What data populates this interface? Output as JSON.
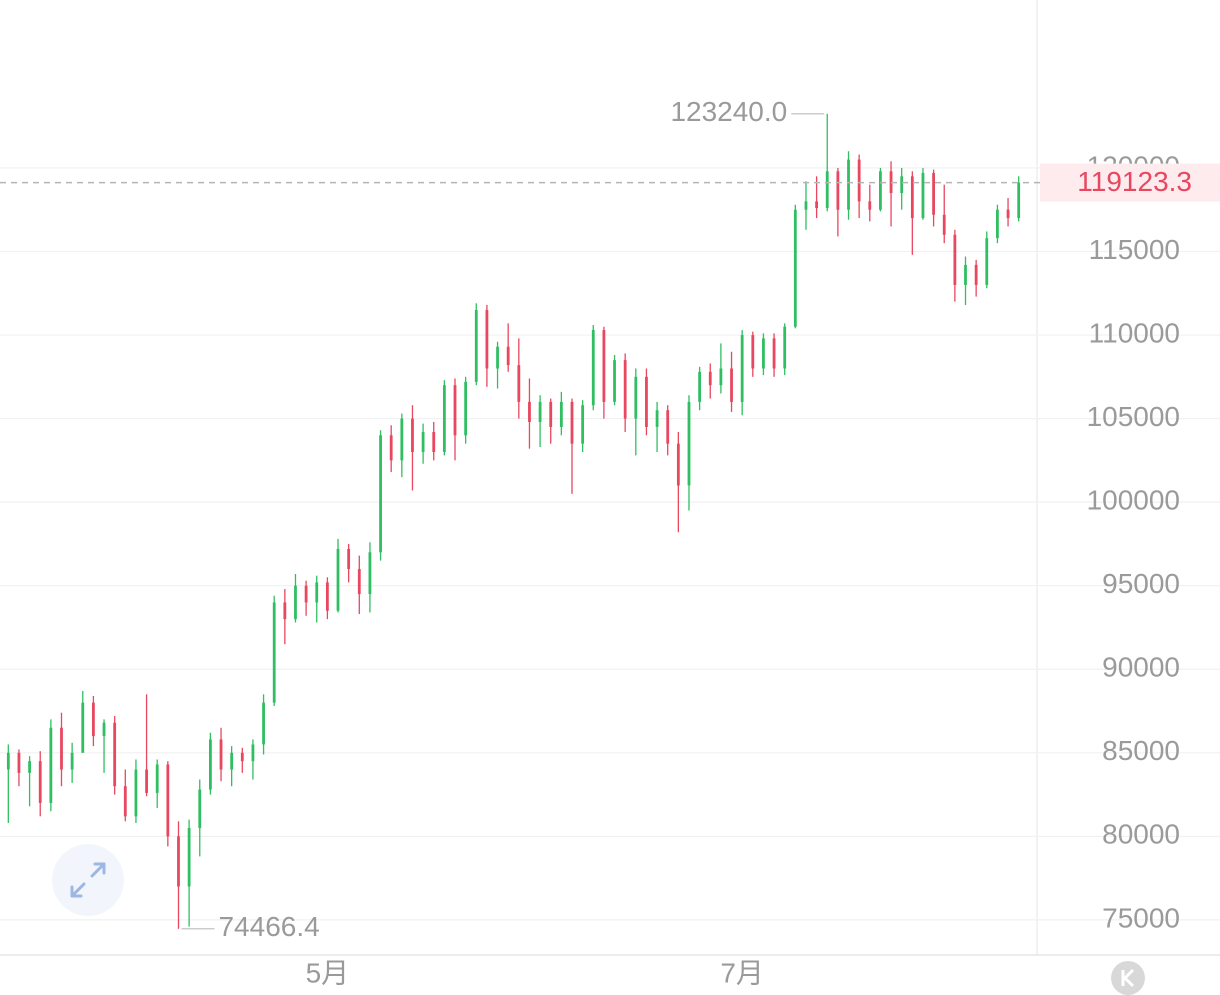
{
  "chart_data": {
    "type": "candlestick",
    "up_color": "#2fbf62",
    "down_color": "#e8475f",
    "ylim": [
      72900,
      130050
    ],
    "yticks": [
      75000,
      80000,
      85000,
      90000,
      95000,
      100000,
      105000,
      110000,
      115000,
      120000
    ],
    "grid": true,
    "last_price": 119123.3,
    "max_annotation": {
      "value": 123240,
      "label": "123240.0"
    },
    "min_annotation": 74466.4,
    "categories": [
      null,
      null,
      null,
      null,
      null,
      null,
      null,
      null,
      null,
      null,
      null,
      null,
      null,
      null,
      null,
      null,
      null,
      null,
      null,
      null,
      null,
      null,
      null,
      null,
      null,
      null,
      null,
      null,
      null,
      null,
      "5月",
      null,
      null,
      null,
      null,
      null,
      null,
      null,
      null,
      null,
      null,
      null,
      null,
      null,
      null,
      null,
      null,
      null,
      null,
      null,
      null,
      null,
      null,
      null,
      null,
      null,
      null,
      null,
      null,
      null,
      null,
      null,
      null,
      null,
      null,
      null,
      null,
      null,
      null,
      "7月",
      null,
      null,
      null,
      null,
      null,
      null,
      null,
      null,
      null,
      null,
      null,
      null,
      null,
      null,
      null,
      null,
      null,
      null,
      null,
      null,
      null,
      null,
      null,
      null,
      null,
      null
    ],
    "candles": [
      [
        84000,
        85500,
        80800,
        85000
      ],
      [
        85000,
        85200,
        83000,
        83800
      ],
      [
        83800,
        84800,
        81800,
        84500
      ],
      [
        84500,
        85100,
        81200,
        82000
      ],
      [
        82000,
        87000,
        81500,
        86500
      ],
      [
        86500,
        87400,
        83000,
        84000
      ],
      [
        84000,
        85600,
        83200,
        85000
      ],
      [
        85000,
        88700,
        85000,
        88000
      ],
      [
        88000,
        88400,
        85400,
        86000
      ],
      [
        86000,
        87000,
        83800,
        86800
      ],
      [
        86800,
        87200,
        82500,
        83000
      ],
      [
        83000,
        84000,
        80900,
        81200
      ],
      [
        81200,
        84600,
        80800,
        84000
      ],
      [
        84000,
        88500,
        82400,
        82600
      ],
      [
        82600,
        84600,
        81700,
        84300
      ],
      [
        84300,
        84500,
        79400,
        80000
      ],
      [
        80000,
        80900,
        74466.4,
        77000
      ],
      [
        77000,
        81000,
        74600,
        80500
      ],
      [
        80500,
        83400,
        78800,
        82800
      ],
      [
        82800,
        86200,
        82500,
        85800
      ],
      [
        85800,
        86500,
        83300,
        84000
      ],
      [
        84000,
        85400,
        83000,
        85000
      ],
      [
        85000,
        85300,
        83800,
        84500
      ],
      [
        84500,
        85800,
        83400,
        85500
      ],
      [
        85500,
        88500,
        84900,
        88000
      ],
      [
        88000,
        94400,
        87800,
        94000
      ],
      [
        94000,
        94800,
        91500,
        93000
      ],
      [
        93000,
        95700,
        92800,
        95000
      ],
      [
        95000,
        95300,
        93200,
        94000
      ],
      [
        94000,
        95600,
        92800,
        95200
      ],
      [
        95200,
        95500,
        93000,
        93500
      ],
      [
        93500,
        97800,
        93400,
        97200
      ],
      [
        97200,
        97500,
        95200,
        96000
      ],
      [
        96000,
        96800,
        93300,
        94500
      ],
      [
        94500,
        97600,
        93400,
        97000
      ],
      [
        97000,
        104300,
        96500,
        104000
      ],
      [
        104000,
        104600,
        101800,
        102500
      ],
      [
        102500,
        105300,
        101500,
        105000
      ],
      [
        105000,
        105800,
        100700,
        103000
      ],
      [
        103000,
        104700,
        102300,
        104200
      ],
      [
        104200,
        104800,
        102500,
        103000
      ],
      [
        103000,
        107300,
        102800,
        107000
      ],
      [
        107000,
        107400,
        102500,
        104000
      ],
      [
        104000,
        107500,
        103500,
        107200
      ],
      [
        107200,
        111900,
        107000,
        111500
      ],
      [
        111500,
        111800,
        106900,
        108000
      ],
      [
        108000,
        109600,
        106800,
        109300
      ],
      [
        109300,
        110700,
        107800,
        108200
      ],
      [
        108200,
        109800,
        105000,
        106000
      ],
      [
        106000,
        107400,
        103200,
        104800
      ],
      [
        104800,
        106400,
        103300,
        106000
      ],
      [
        106000,
        106200,
        103500,
        104500
      ],
      [
        104500,
        106600,
        104000,
        106000
      ],
      [
        106000,
        106200,
        100500,
        103500
      ],
      [
        103500,
        106100,
        103000,
        105800
      ],
      [
        105800,
        110600,
        105500,
        110300
      ],
      [
        110300,
        110500,
        105000,
        106000
      ],
      [
        106000,
        108800,
        105800,
        108500
      ],
      [
        108500,
        108900,
        104200,
        105000
      ],
      [
        105000,
        108000,
        102800,
        107500
      ],
      [
        107500,
        108000,
        104000,
        104500
      ],
      [
        104500,
        106000,
        103000,
        105500
      ],
      [
        105500,
        105800,
        102800,
        103500
      ],
      [
        103500,
        104200,
        98200,
        101000
      ],
      [
        101000,
        106400,
        99500,
        106000
      ],
      [
        106000,
        108100,
        105500,
        107800
      ],
      [
        107800,
        108300,
        106200,
        107000
      ],
      [
        107000,
        109500,
        106500,
        108000
      ],
      [
        108000,
        109000,
        105400,
        106000
      ],
      [
        106000,
        110300,
        105200,
        110000
      ],
      [
        110000,
        110200,
        107500,
        108000
      ],
      [
        108000,
        110100,
        107600,
        109800
      ],
      [
        109800,
        110100,
        107500,
        108000
      ],
      [
        108000,
        110700,
        107600,
        110500
      ],
      [
        110500,
        117800,
        110400,
        117500
      ],
      [
        117500,
        119200,
        116300,
        118000
      ],
      [
        118000,
        119500,
        117000,
        117600
      ],
      [
        117600,
        123240,
        117400,
        119800
      ],
      [
        119800,
        120000,
        115900,
        117500
      ],
      [
        117500,
        121000,
        116900,
        120500
      ],
      [
        120500,
        120800,
        117000,
        118000
      ],
      [
        118000,
        119000,
        116800,
        117500
      ],
      [
        117500,
        120000,
        117400,
        119800
      ],
      [
        119800,
        120400,
        116500,
        118500
      ],
      [
        118500,
        120000,
        117500,
        119500
      ],
      [
        119500,
        119800,
        114800,
        117000
      ],
      [
        117000,
        120000,
        116900,
        119700
      ],
      [
        119700,
        119900,
        116500,
        117200
      ],
      [
        117200,
        119000,
        115500,
        116000
      ],
      [
        116000,
        116300,
        112000,
        113000
      ],
      [
        113000,
        114700,
        111800,
        114200
      ],
      [
        114200,
        114500,
        112300,
        113000
      ],
      [
        113000,
        116200,
        112800,
        115800
      ],
      [
        115800,
        117800,
        115500,
        117500
      ],
      [
        117500,
        118200,
        116500,
        117000
      ],
      [
        117000,
        119500,
        116800,
        119123.3
      ]
    ]
  }
}
